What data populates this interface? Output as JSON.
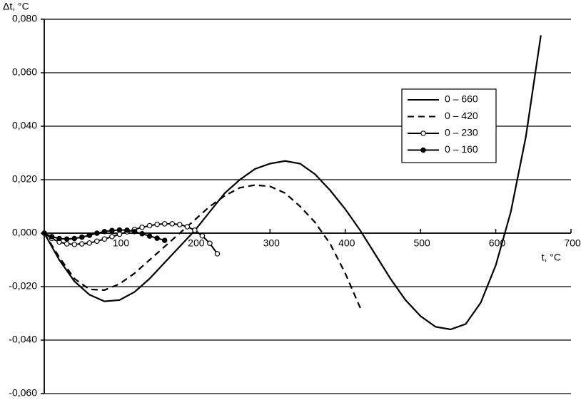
{
  "chart_data": {
    "type": "line",
    "y_label": "Δt, °C",
    "x_label": "t, °C",
    "xlim": [
      0,
      700
    ],
    "ylim": [
      -0.06,
      0.08
    ],
    "xticks": [
      100,
      200,
      300,
      400,
      500,
      600,
      700
    ],
    "yticks": [
      {
        "value": -0.06,
        "label": "-0,060"
      },
      {
        "value": -0.04,
        "label": "-0,040"
      },
      {
        "value": -0.02,
        "label": "-0,020"
      },
      {
        "value": 0,
        "label": "0,000"
      },
      {
        "value": 0.02,
        "label": "0,020"
      },
      {
        "value": 0.04,
        "label": "0,040"
      },
      {
        "value": 0.06,
        "label": "0,060"
      },
      {
        "value": 0.08,
        "label": "0,080"
      }
    ],
    "grid": true,
    "legend": "upper right",
    "series": [
      {
        "name": "0 – 660",
        "color": "#000000",
        "dash": false,
        "marker": "none",
        "x": [
          0,
          20,
          40,
          60,
          80,
          100,
          120,
          140,
          160,
          180,
          200,
          220,
          240,
          260,
          280,
          300,
          320,
          340,
          360,
          380,
          400,
          420,
          440,
          460,
          480,
          500,
          520,
          540,
          560,
          580,
          600,
          620,
          640,
          660
        ],
        "values": [
          0,
          -0.01,
          -0.018,
          -0.023,
          -0.0255,
          -0.025,
          -0.022,
          -0.017,
          -0.011,
          -0.005,
          0.001,
          0.008,
          0.015,
          0.02,
          0.024,
          0.026,
          0.027,
          0.026,
          0.022,
          0.016,
          0.009,
          0.001,
          -0.008,
          -0.017,
          -0.025,
          -0.031,
          -0.035,
          -0.036,
          -0.034,
          -0.026,
          -0.012,
          0.008,
          0.036,
          0.074
        ]
      },
      {
        "name": "0 – 420",
        "color": "#000000",
        "dash": true,
        "marker": "none",
        "x": [
          0,
          20,
          40,
          60,
          80,
          100,
          120,
          140,
          160,
          180,
          200,
          220,
          240,
          260,
          280,
          300,
          320,
          340,
          360,
          380,
          400,
          420
        ],
        "values": [
          0,
          -0.009,
          -0.017,
          -0.021,
          -0.0213,
          -0.019,
          -0.015,
          -0.01,
          -0.005,
          0,
          0.005,
          0.01,
          0.014,
          0.017,
          0.018,
          0.0175,
          0.015,
          0.01,
          0.004,
          -0.004,
          -0.015,
          -0.028
        ]
      },
      {
        "name": "0 – 230",
        "color": "#000000",
        "dash": false,
        "marker": "open",
        "x": [
          0,
          10,
          20,
          30,
          40,
          50,
          60,
          70,
          80,
          90,
          100,
          110,
          120,
          130,
          140,
          150,
          160,
          170,
          180,
          190,
          200,
          210,
          220,
          230
        ],
        "values": [
          0,
          -0.002,
          -0.0033,
          -0.004,
          -0.0042,
          -0.004,
          -0.0037,
          -0.003,
          -0.0022,
          -0.0013,
          -0.0004,
          0.0005,
          0.0014,
          0.0022,
          0.0028,
          0.0033,
          0.0035,
          0.0035,
          0.0032,
          0.0024,
          0.0011,
          -0.001,
          -0.0038,
          -0.0077
        ]
      },
      {
        "name": "0 – 160",
        "color": "#000000",
        "dash": false,
        "marker": "filled",
        "x": [
          0,
          10,
          20,
          30,
          40,
          50,
          60,
          70,
          80,
          90,
          100,
          110,
          120,
          130,
          140,
          150,
          160
        ],
        "values": [
          0,
          -0.0013,
          -0.002,
          -0.0022,
          -0.002,
          -0.0015,
          -0.0008,
          0,
          0.0006,
          0.001,
          0.0012,
          0.0011,
          0.0006,
          -0.0002,
          -0.0011,
          -0.0019,
          -0.0027
        ]
      }
    ]
  }
}
